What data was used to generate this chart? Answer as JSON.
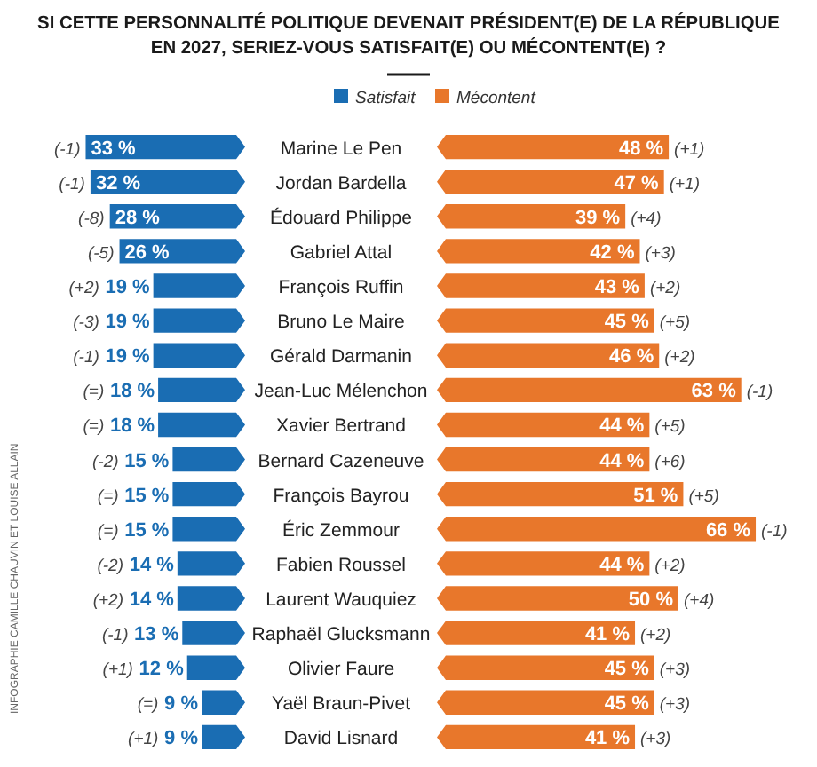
{
  "chart_data": [
    {
      "type": "bar",
      "orientation": "horizontal",
      "title": "SI CETTE PERSONNALITÉ POLITIQUE DEVENAIT PRÉSIDENT(E) DE LA RÉPUBLIQUE\nEN 2027, SERIEZ-VOUS SATISFAIT(E) OU MÉCONTENT(E) ?",
      "legend": "top",
      "categories": [
        "Marine Le Pen",
        "Jordan Bardella",
        "Édouard Philippe",
        "Gabriel Attal",
        "François Ruffin",
        "Bruno Le Maire",
        "Gérald Darmanin",
        "Jean-Luc Mélenchon",
        "Xavier Bertrand",
        "Bernard Cazeneuve",
        "François Bayrou",
        "Éric Zemmour",
        "Fabien Roussel",
        "Laurent Wauquiez",
        "Raphaël Glucksmann",
        "Olivier Faure",
        "Yaël Braun-Pivet",
        "David Lisnard"
      ],
      "series": [
        {
          "name": "Satisfait",
          "color": "#1a6db3",
          "values": [
            33,
            32,
            28,
            26,
            19,
            19,
            19,
            18,
            18,
            15,
            15,
            15,
            14,
            14,
            13,
            12,
            9,
            9
          ],
          "value_labels": [
            "33 %",
            "32 %",
            "28 %",
            "26 %",
            "19 %",
            "19 %",
            "19 %",
            "18 %",
            "18 %",
            "15 %",
            "15 %",
            "15 %",
            "14 %",
            "14 %",
            "13 %",
            "12 %",
            "9 %",
            "9 %"
          ]
        }
      ],
      "annotations": [
        "(-1)",
        "(-1)",
        "(-8)",
        "(-5)",
        "(+2)",
        "(-3)",
        "(-1)",
        "(=)",
        "(=)",
        "(-2)",
        "(=)",
        "(=)",
        "(-2)",
        "(+2)",
        "(-1)",
        "(+1)",
        "(=)",
        "(+1)",
        "INFOGRAPHIE CAMILLE CHAUVIN ET LOUISE ALLAIN"
      ]
    },
    {
      "type": "bar",
      "orientation": "horizontal",
      "legend": "top",
      "categories": [
        null,
        null,
        null,
        null,
        null,
        null,
        null,
        null,
        null,
        null,
        null,
        null,
        null,
        null,
        null,
        null,
        null,
        null
      ],
      "series": [
        {
          "name": "Mécontent",
          "color": "#e8772b",
          "values": [
            48,
            47,
            39,
            42,
            43,
            45,
            46,
            63,
            44,
            44,
            51,
            66,
            44,
            50,
            41,
            45,
            45,
            41
          ],
          "value_labels": [
            "48 %",
            "47 %",
            "39 %",
            "42 %",
            "43 %",
            "45 %",
            "46 %",
            "63 %",
            "44 %",
            "44 %",
            "51 %",
            "66 %",
            "44 %",
            "50 %",
            "41 %",
            "45 %",
            "45 %",
            "41 %"
          ]
        }
      ],
      "annotations": [
        "(+1)",
        "(+1)",
        "(+4)",
        "(+3)",
        "(+2)",
        "(+5)",
        "(+2)",
        "(-1)",
        "(+5)",
        "(+6)",
        "(+5)",
        "(-1)",
        "(+2)",
        "(+4)",
        "(+2)",
        "(+3)",
        "(+3)",
        "(+3)"
      ]
    }
  ]
}
